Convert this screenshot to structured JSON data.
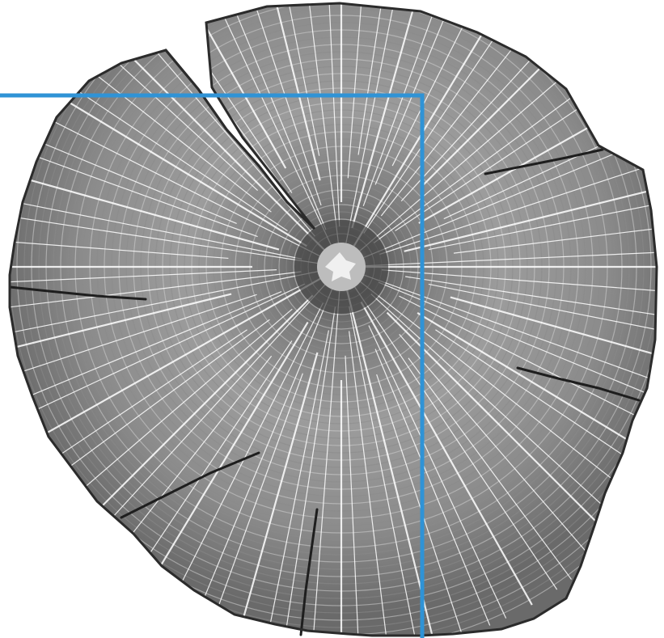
{
  "image": {
    "subject": "tree-trunk-cross-section",
    "style": "grayscale",
    "background": "#ffffff",
    "colors": {
      "wood_dark": "#3c3c3c",
      "wood_mid": "#8a8a8a",
      "wood_light": "#cfcfcf",
      "ray_lines": "#ffffff",
      "crack": "#1e1e1e"
    }
  },
  "overlay": {
    "line_color": "#2f93d6"
  }
}
